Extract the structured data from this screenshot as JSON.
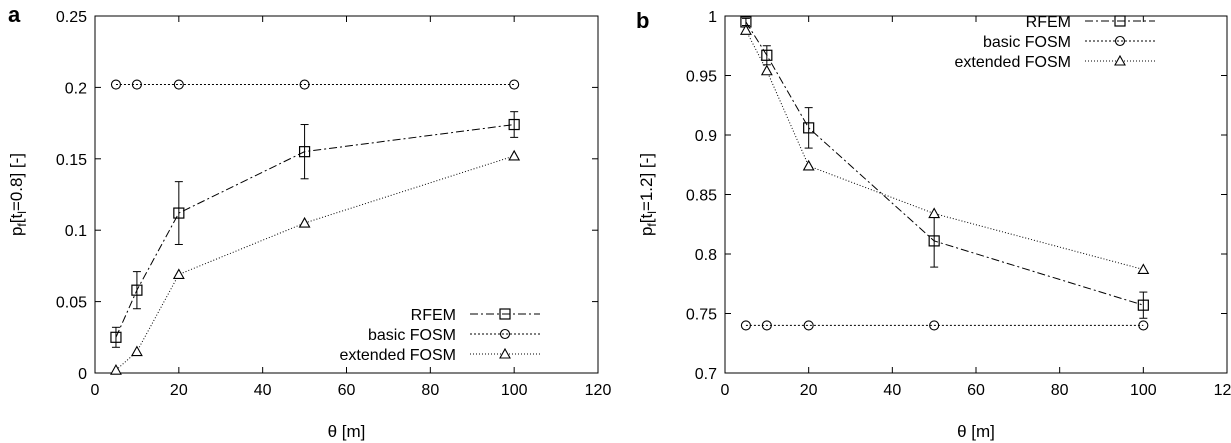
{
  "chart_data": [
    {
      "type": "line",
      "panel_label": "a",
      "xlabel": "θ [m]",
      "ylabel": {
        "main": "p",
        "sub1": "f",
        "mid": "[t",
        "sub2": "l",
        "tail": "=0.8] [-]"
      },
      "xlim": [
        0,
        120
      ],
      "ylim": [
        0,
        0.25
      ],
      "x_ticks": [
        0,
        20,
        40,
        60,
        80,
        100,
        120
      ],
      "y_ticks": [
        0,
        0.05,
        0.1,
        0.15,
        0.2,
        0.25
      ],
      "legend_position": "bottom-right",
      "grid": false,
      "series": [
        {
          "name": "RFEM",
          "marker": "square",
          "dash": "8,3,2,3",
          "x": [
            5,
            10,
            20,
            50,
            100
          ],
          "y": [
            0.025,
            0.058,
            0.112,
            0.155,
            0.174
          ],
          "err": [
            0.007,
            0.013,
            0.022,
            0.019,
            0.009
          ]
        },
        {
          "name": "basic FOSM",
          "marker": "circle",
          "dash": "2,2",
          "x": [
            5,
            10,
            20,
            50,
            100
          ],
          "y": [
            0.202,
            0.202,
            0.202,
            0.202,
            0.202
          ]
        },
        {
          "name": "extended FOSM",
          "marker": "triangle",
          "dash": "1,2",
          "x": [
            5,
            10,
            20,
            50,
            100
          ],
          "y": [
            0.002,
            0.015,
            0.069,
            0.105,
            0.152
          ]
        }
      ]
    },
    {
      "type": "line",
      "panel_label": "b",
      "xlabel": "θ [m]",
      "ylabel": {
        "main": "p",
        "sub1": "f",
        "mid": "[t",
        "sub2": "l",
        "tail": "=1.2] [-]"
      },
      "xlim": [
        0,
        120
      ],
      "ylim": [
        0.7,
        1.0
      ],
      "x_ticks": [
        0,
        20,
        40,
        60,
        80,
        100,
        120
      ],
      "y_ticks": [
        0.7,
        0.75,
        0.8,
        0.85,
        0.9,
        0.95,
        1
      ],
      "legend_position": "top-right",
      "grid": false,
      "series": [
        {
          "name": "RFEM",
          "marker": "square",
          "dash": "8,3,2,3",
          "x": [
            5,
            10,
            20,
            50,
            100
          ],
          "y": [
            0.995,
            0.967,
            0.906,
            0.811,
            0.757
          ],
          "err": [
            0.003,
            0.008,
            0.017,
            0.022,
            0.011
          ]
        },
        {
          "name": "basic FOSM",
          "marker": "circle",
          "dash": "2,2",
          "x": [
            5,
            10,
            20,
            50,
            100
          ],
          "y": [
            0.74,
            0.74,
            0.74,
            0.74,
            0.74
          ]
        },
        {
          "name": "extended FOSM",
          "marker": "triangle",
          "dash": "1,2",
          "x": [
            5,
            10,
            20,
            50,
            100
          ],
          "y": [
            0.988,
            0.954,
            0.874,
            0.834,
            0.787
          ]
        }
      ]
    }
  ]
}
